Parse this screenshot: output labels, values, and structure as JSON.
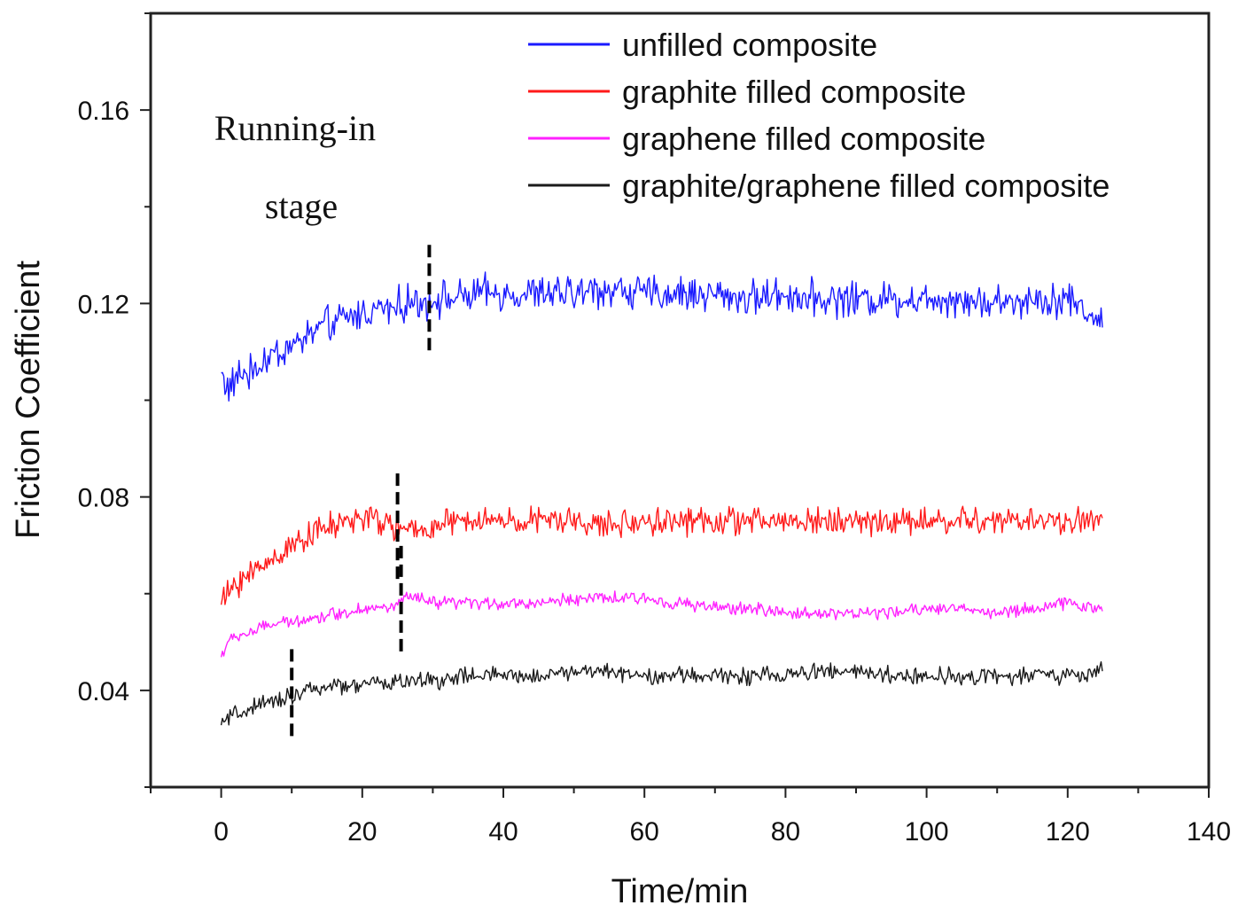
{
  "chart_data": {
    "type": "line",
    "xlabel": "Time/min",
    "ylabel": "Friction Coefficient",
    "xlim": [
      -10,
      140
    ],
    "ylim": [
      0.02,
      0.18
    ],
    "xticks": [
      0,
      20,
      40,
      60,
      80,
      100,
      120,
      140
    ],
    "yticks": [
      0.04,
      0.08,
      0.12,
      0.16
    ],
    "xtick_labels": [
      "0",
      "20",
      "40",
      "60",
      "80",
      "100",
      "120",
      "140"
    ],
    "ytick_labels": [
      "0.04",
      "0.08",
      "0.12",
      "0.16"
    ],
    "grid": false,
    "legend_position": "top-right",
    "annotation": {
      "line1": "Running-in",
      "line2": "stage"
    },
    "series": [
      {
        "name": "unfilled composite",
        "color": "#1a1aff",
        "running_in_end": 29.5,
        "x": [
          0,
          1,
          2,
          3,
          4,
          5,
          6,
          8,
          10,
          12,
          14,
          16,
          18,
          20,
          22,
          24,
          26,
          28,
          30,
          32,
          34,
          36,
          38,
          40,
          45,
          50,
          55,
          60,
          65,
          70,
          75,
          80,
          85,
          90,
          95,
          100,
          105,
          110,
          115,
          120,
          125
        ],
        "y": [
          0.106,
          0.102,
          0.104,
          0.106,
          0.105,
          0.107,
          0.108,
          0.11,
          0.111,
          0.113,
          0.115,
          0.116,
          0.117,
          0.118,
          0.119,
          0.119,
          0.12,
          0.12,
          0.121,
          0.121,
          0.121,
          0.122,
          0.122,
          0.122,
          0.122,
          0.122,
          0.123,
          0.122,
          0.122,
          0.122,
          0.121,
          0.122,
          0.121,
          0.121,
          0.121,
          0.121,
          0.121,
          0.12,
          0.121,
          0.121,
          0.116
        ],
        "amplitude": 0.0045
      },
      {
        "name": "graphite filled composite",
        "color": "#ff1a1a",
        "running_in_end": 25,
        "x": [
          0,
          1,
          2,
          4,
          6,
          8,
          10,
          12,
          14,
          16,
          18,
          20,
          22,
          24,
          26,
          28,
          30,
          35,
          40,
          45,
          50,
          55,
          60,
          65,
          70,
          75,
          80,
          85,
          90,
          95,
          100,
          105,
          110,
          115,
          120,
          125
        ],
        "y": [
          0.058,
          0.06,
          0.062,
          0.064,
          0.066,
          0.068,
          0.07,
          0.072,
          0.073,
          0.074,
          0.075,
          0.076,
          0.075,
          0.074,
          0.073,
          0.073,
          0.074,
          0.075,
          0.075,
          0.075,
          0.075,
          0.074,
          0.075,
          0.075,
          0.075,
          0.075,
          0.075,
          0.075,
          0.075,
          0.075,
          0.075,
          0.075,
          0.075,
          0.075,
          0.075,
          0.075
        ],
        "amplitude": 0.0035
      },
      {
        "name": "graphene filled composite",
        "color": "#ff22ff",
        "running_in_end": 25.5,
        "x": [
          0,
          1,
          2,
          4,
          6,
          8,
          10,
          12,
          14,
          16,
          18,
          20,
          22,
          24,
          26,
          28,
          30,
          35,
          40,
          45,
          50,
          55,
          60,
          65,
          70,
          75,
          80,
          85,
          90,
          95,
          100,
          105,
          110,
          115,
          120,
          125
        ],
        "y": [
          0.047,
          0.05,
          0.051,
          0.052,
          0.053,
          0.054,
          0.054,
          0.055,
          0.055,
          0.056,
          0.056,
          0.057,
          0.057,
          0.057,
          0.059,
          0.059,
          0.058,
          0.058,
          0.058,
          0.058,
          0.059,
          0.059,
          0.059,
          0.058,
          0.057,
          0.057,
          0.056,
          0.056,
          0.056,
          0.056,
          0.057,
          0.057,
          0.056,
          0.057,
          0.058,
          0.057
        ],
        "amplitude": 0.0016
      },
      {
        "name": "graphite/graphene filled composite",
        "color": "#1a1a1a",
        "running_in_end": 10,
        "x": [
          0,
          1,
          2,
          4,
          6,
          8,
          10,
          12,
          14,
          16,
          18,
          20,
          25,
          30,
          35,
          40,
          45,
          50,
          55,
          60,
          65,
          70,
          75,
          80,
          85,
          90,
          95,
          100,
          105,
          110,
          115,
          120,
          125
        ],
        "y": [
          0.033,
          0.034,
          0.035,
          0.036,
          0.037,
          0.038,
          0.039,
          0.04,
          0.04,
          0.041,
          0.041,
          0.041,
          0.042,
          0.042,
          0.043,
          0.043,
          0.043,
          0.044,
          0.044,
          0.043,
          0.043,
          0.043,
          0.043,
          0.043,
          0.044,
          0.044,
          0.043,
          0.043,
          0.043,
          0.043,
          0.043,
          0.043,
          0.044
        ],
        "amplitude": 0.0022
      }
    ]
  }
}
